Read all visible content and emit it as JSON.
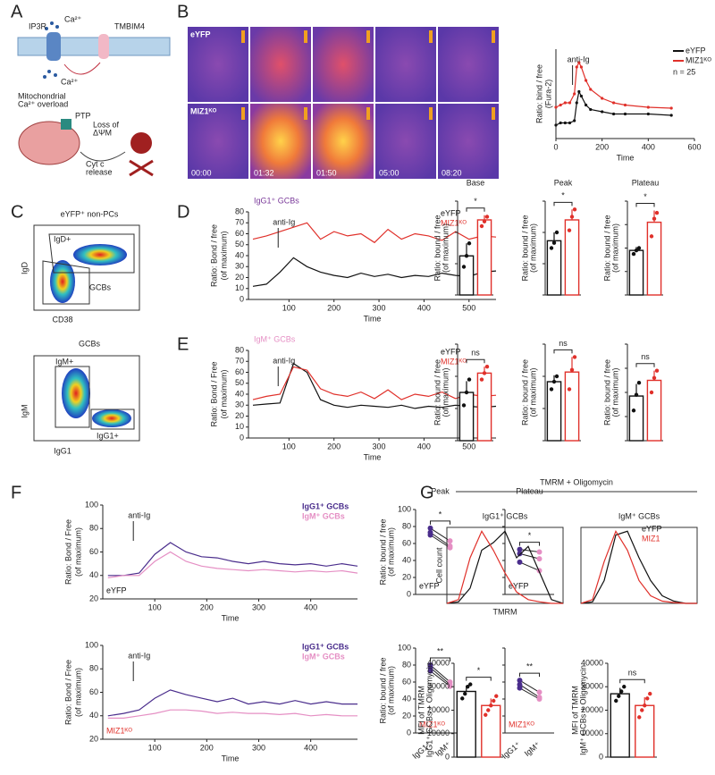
{
  "figure": {
    "panel_labels": [
      "A",
      "B",
      "C",
      "D",
      "E",
      "F",
      "G"
    ],
    "diagram_A": {
      "channel": "IP3R",
      "ion": "Ca²⁺",
      "protein": "TMBIM4",
      "overload_1": "Mitochondrial",
      "overload_2": "Ca²⁺ overload",
      "pore": "PTP",
      "loss_1": "Loss of",
      "loss_2": "ΔΨM",
      "cytc_1": "Cyt c",
      "cytc_2": "release"
    },
    "imaging_B": {
      "rows": [
        "eYFP",
        "MIZ1ᴷᴼ"
      ],
      "times": [
        "00:00",
        "01:32",
        "01:50",
        "05:00",
        "08:20"
      ]
    },
    "flow_C": {
      "title_1": "eYFP⁺ non-PCs",
      "gate_1a": "IgD+",
      "gate_1b": "GCBs",
      "y_1": "IgD",
      "x_1": "CD38",
      "title_2": "GCBs",
      "gate_2a": "IgM+",
      "gate_2b": "IgG1+",
      "y_2": "IgM",
      "x_2": "IgG1"
    },
    "G_title": "TMRM + Oligomycin"
  },
  "chart_data": [
    {
      "type": "line",
      "ylabel": "Ratio: bind / free",
      "ylabel2": "(Fura-2)",
      "xlabel": "Time",
      "xlim": [
        0,
        600
      ],
      "xticks": [
        0,
        200,
        400,
        600
      ],
      "ylim": [
        0.6,
        2.6
      ],
      "legend": "upper right",
      "annotation": "anti-Ig",
      "note": "n = 25",
      "markers": true,
      "x": [
        0,
        20,
        40,
        60,
        80,
        90,
        100,
        110,
        130,
        150,
        200,
        250,
        300,
        400,
        500
      ],
      "series": [
        {
          "name": "eYFP",
          "color": "#111111",
          "values": [
            0.9,
            0.95,
            0.95,
            0.95,
            1.0,
            1.4,
            1.65,
            1.55,
            1.35,
            1.25,
            1.2,
            1.15,
            1.15,
            1.15,
            1.12
          ]
        },
        {
          "name": "MIZ1ᴷᴼ",
          "color": "#e0302a",
          "values": [
            1.3,
            1.35,
            1.4,
            1.4,
            1.6,
            2.2,
            2.3,
            2.2,
            1.9,
            1.7,
            1.5,
            1.4,
            1.35,
            1.3,
            1.28
          ]
        }
      ]
    },
    {
      "type": "line",
      "title": "IgG1⁺ GCBs",
      "title_color": "#7a3a9a",
      "ylabel": "Ratio: Bond / free",
      "ylabel2": "(of maximum)",
      "xlabel": "Time",
      "xlim": [
        10,
        560
      ],
      "xticks": [
        100,
        200,
        300,
        400,
        500
      ],
      "ylim": [
        0,
        80
      ],
      "yticks": [
        0,
        10,
        20,
        30,
        40,
        50,
        60,
        70,
        80
      ],
      "legend": "upper right",
      "annotation": "anti-Ig",
      "x": [
        20,
        50,
        80,
        110,
        140,
        170,
        200,
        230,
        260,
        290,
        320,
        350,
        380,
        410,
        440,
        470,
        500,
        530,
        560
      ],
      "series": [
        {
          "name": "eYFP",
          "color": "#111111",
          "values": [
            12,
            14,
            25,
            38,
            30,
            25,
            22,
            20,
            24,
            21,
            23,
            20,
            22,
            21,
            24,
            22,
            21,
            25,
            26
          ]
        },
        {
          "name": "MIZ1ᴷᴼ",
          "color": "#e0302a",
          "values": [
            55,
            58,
            62,
            66,
            70,
            55,
            62,
            58,
            60,
            52,
            64,
            55,
            60,
            58,
            54,
            62,
            55,
            58,
            57
          ]
        }
      ]
    },
    {
      "type": "bar",
      "title": "Base",
      "ylabel": "Ratio: bound / free",
      "ylabel2": "(of maximum)",
      "ylim": [
        0,
        60
      ],
      "yticks": [
        0,
        20,
        40,
        60
      ],
      "tick_labels": false,
      "colors": [
        "#111111",
        "#e0302a"
      ],
      "values": [
        25,
        48
      ],
      "errors": [
        8,
        3
      ],
      "points": [
        [
          18,
          25,
          33
        ],
        [
          44,
          47,
          50
        ]
      ],
      "significance": "*"
    },
    {
      "type": "bar",
      "title": "Peak",
      "ylabel": "Ratio: bound / free",
      "ylabel2": "(of maximum)",
      "ylim": [
        0,
        90
      ],
      "yticks": [
        0,
        30,
        60,
        90
      ],
      "tick_labels": false,
      "colors": [
        "#111111",
        "#e0302a"
      ],
      "values": [
        52,
        72
      ],
      "errors": [
        8,
        10
      ],
      "points": [
        [
          45,
          50,
          60
        ],
        [
          62,
          75,
          82
        ]
      ],
      "significance": "*"
    },
    {
      "type": "bar",
      "title": "Plateau",
      "ylabel": "Ratio: bound / free",
      "ylabel2": "(of maximum)",
      "ylim": [
        0,
        80
      ],
      "yticks": [
        0,
        20,
        40,
        60,
        80
      ],
      "tick_labels": false,
      "colors": [
        "#111111",
        "#e0302a"
      ],
      "values": [
        38,
        62
      ],
      "errors": [
        3,
        10
      ],
      "points": [
        [
          35,
          38,
          40
        ],
        [
          50,
          65,
          70
        ]
      ],
      "significance": "*"
    },
    {
      "type": "line",
      "title": "IgM⁺ GCBs",
      "title_color": "#e58fc4",
      "ylabel": "Ratio: Bond / Free",
      "ylabel2": "(of maximum)",
      "xlabel": "Time",
      "xlim": [
        10,
        560
      ],
      "xticks": [
        100,
        200,
        300,
        400,
        500
      ],
      "ylim": [
        0,
        80
      ],
      "yticks": [
        0,
        10,
        20,
        30,
        40,
        50,
        60,
        70,
        80
      ],
      "legend": "upper right",
      "annotation": "anti-Ig",
      "x": [
        20,
        50,
        80,
        110,
        140,
        170,
        200,
        230,
        260,
        290,
        320,
        350,
        380,
        410,
        440,
        470,
        500,
        530,
        560
      ],
      "series": [
        {
          "name": "eYFP",
          "color": "#111111",
          "values": [
            30,
            31,
            32,
            68,
            60,
            35,
            30,
            28,
            30,
            29,
            28,
            30,
            27,
            29,
            28,
            30,
            29,
            28,
            29
          ]
        },
        {
          "name": "MIZ1ᴷᴼ",
          "color": "#e0302a",
          "values": [
            35,
            38,
            40,
            65,
            62,
            45,
            40,
            38,
            42,
            36,
            44,
            35,
            40,
            38,
            42,
            36,
            40,
            38,
            39
          ]
        }
      ]
    },
    {
      "type": "bar",
      "ylabel": "Ratio: bound / free",
      "ylabel2": "(of maximum)",
      "ylim": [
        0,
        60
      ],
      "yticks": [
        0,
        20,
        40,
        60
      ],
      "tick_labels": false,
      "colors": [
        "#111111",
        "#e0302a"
      ],
      "values": [
        30,
        42
      ],
      "errors": [
        7,
        4
      ],
      "points": [
        [
          22,
          30,
          38
        ],
        [
          38,
          42,
          46
        ]
      ],
      "significance": "ns"
    },
    {
      "type": "bar",
      "ylabel": "Ratio: bound / free",
      "ylabel2": "(of maximum)",
      "ylim": [
        0,
        90
      ],
      "yticks": [
        0,
        30,
        60,
        90
      ],
      "tick_labels": false,
      "colors": [
        "#111111",
        "#e0302a"
      ],
      "values": [
        55,
        64
      ],
      "errors": [
        6,
        14
      ],
      "points": [
        [
          48,
          55,
          60
        ],
        [
          48,
          66,
          78
        ]
      ],
      "significance": "ns"
    },
    {
      "type": "bar",
      "ylabel": "Ratio: bound / free",
      "ylabel2": "(of maximum)",
      "ylim": [
        0,
        80
      ],
      "yticks": [
        0,
        20,
        40,
        60,
        80
      ],
      "tick_labels": false,
      "colors": [
        "#111111",
        "#e0302a"
      ],
      "values": [
        37,
        50
      ],
      "errors": [
        10,
        8
      ],
      "points": [
        [
          25,
          38,
          48
        ],
        [
          40,
          52,
          58
        ]
      ],
      "significance": "ns"
    },
    {
      "type": "line",
      "ylabel": "Ratio: Bond / Free",
      "ylabel2": "(of maximum)",
      "xlabel": "Time",
      "xlim": [
        0,
        490
      ],
      "xticks": [
        100,
        200,
        300,
        400
      ],
      "ylim": [
        20,
        100
      ],
      "yticks": [
        20,
        40,
        60,
        80,
        100
      ],
      "legend": "upper right",
      "annotation": "anti-Ig",
      "label": "eYFP",
      "label_color": "#111111",
      "x": [
        10,
        40,
        70,
        100,
        130,
        160,
        190,
        220,
        250,
        280,
        310,
        340,
        370,
        400,
        430,
        460,
        490
      ],
      "series": [
        {
          "name": "IgG1⁺ GCBs",
          "color": "#4a2d8c",
          "values": [
            40,
            40,
            42,
            58,
            68,
            60,
            56,
            55,
            52,
            50,
            52,
            50,
            49,
            50,
            48,
            50,
            48
          ]
        },
        {
          "name": "IgM⁺ GCBs",
          "color": "#e58fc4",
          "values": [
            38,
            40,
            40,
            52,
            60,
            52,
            48,
            46,
            45,
            44,
            45,
            44,
            43,
            44,
            43,
            44,
            42
          ]
        }
      ]
    },
    {
      "type": "paired",
      "title": "Peak",
      "ylabel": "Ratio: bound / free",
      "ylabel2": "(of maximum)",
      "ylim": [
        0,
        100
      ],
      "yticks": [
        0,
        20,
        40,
        60,
        80,
        100
      ],
      "colors": [
        "#4a2d8c",
        "#e58fc4"
      ],
      "pairs": [
        [
          78,
          63
        ],
        [
          73,
          57
        ],
        [
          70,
          55
        ]
      ],
      "significance": "*",
      "label": "eYFP",
      "label_color": "#111111"
    },
    {
      "type": "paired",
      "title": "Plateau",
      "ylim": [
        0,
        100
      ],
      "yticks": [
        0,
        20,
        40,
        60,
        80,
        100
      ],
      "tick_labels": false,
      "colors": [
        "#4a2d8c",
        "#e58fc4"
      ],
      "pairs": [
        [
          53,
          50
        ],
        [
          48,
          42
        ],
        [
          38,
          28
        ]
      ],
      "significance": "*",
      "label": "eYFP",
      "label_color": "#111111"
    },
    {
      "type": "line",
      "ylabel": "Ratio: Bond / Free",
      "ylabel2": "(of maximum)",
      "xlabel": "Time",
      "xlim": [
        0,
        490
      ],
      "xticks": [
        100,
        200,
        300,
        400
      ],
      "ylim": [
        20,
        100
      ],
      "yticks": [
        20,
        40,
        60,
        80,
        100
      ],
      "legend": "upper right",
      "annotation": "anti-Ig",
      "label": "MIZ1ᴷᴼ",
      "label_color": "#e0302a",
      "x": [
        10,
        40,
        70,
        100,
        130,
        160,
        190,
        220,
        250,
        280,
        310,
        340,
        370,
        400,
        430,
        460,
        490
      ],
      "series": [
        {
          "name": "IgG1⁺ GCBs",
          "color": "#4a2d8c",
          "values": [
            40,
            42,
            45,
            55,
            62,
            58,
            55,
            52,
            55,
            50,
            52,
            50,
            53,
            50,
            52,
            50,
            50
          ]
        },
        {
          "name": "IgM⁺ GCBs",
          "color": "#e58fc4",
          "values": [
            38,
            38,
            40,
            42,
            45,
            45,
            44,
            42,
            43,
            42,
            42,
            41,
            42,
            40,
            41,
            40,
            40
          ]
        }
      ]
    },
    {
      "type": "paired",
      "ylabel": "Ratio: bound / free",
      "ylabel2": "(of maximum)",
      "ylim": [
        0,
        100
      ],
      "yticks": [
        0,
        20,
        40,
        60,
        80,
        100
      ],
      "categories": [
        "IgG1⁺",
        "IgM⁺"
      ],
      "colors": [
        "#4a2d8c",
        "#e58fc4"
      ],
      "pairs": [
        [
          80,
          60
        ],
        [
          77,
          57
        ],
        [
          73,
          55
        ]
      ],
      "significance": "**",
      "label": "MIZ1ᴷᴼ",
      "label_color": "#e0302a"
    },
    {
      "type": "paired",
      "ylim": [
        0,
        100
      ],
      "yticks": [
        0,
        20,
        40,
        60,
        80,
        100
      ],
      "tick_labels": false,
      "categories": [
        "IgG1⁺",
        "IgM⁺"
      ],
      "colors": [
        "#4a2d8c",
        "#e58fc4"
      ],
      "pairs": [
        [
          62,
          48
        ],
        [
          57,
          42
        ],
        [
          53,
          40
        ]
      ],
      "significance": "**",
      "label": "MIZ1ᴷᴼ",
      "label_color": "#e0302a"
    },
    {
      "type": "line",
      "title": "IgG1⁺ GCBs",
      "ylabel": "Cell count",
      "xlabel": "TMRM",
      "xlim": [
        0,
        100
      ],
      "ylim": [
        0,
        100
      ],
      "boxed": true,
      "x": [
        0,
        10,
        20,
        30,
        40,
        50,
        60,
        70,
        80,
        90,
        100
      ],
      "series": [
        {
          "name": "eYFP",
          "color": "#111111",
          "values": [
            0,
            2,
            20,
            70,
            80,
            95,
            60,
            75,
            40,
            5,
            0
          ]
        },
        {
          "name": "MIZ1",
          "color": "#e0302a",
          "values": [
            0,
            5,
            60,
            95,
            70,
            40,
            15,
            5,
            2,
            0,
            0
          ]
        }
      ]
    },
    {
      "type": "line",
      "title": "IgM⁺ GCBs",
      "xlim": [
        0,
        100
      ],
      "ylim": [
        0,
        100
      ],
      "boxed": true,
      "legend": "upper right",
      "x": [
        0,
        10,
        20,
        30,
        40,
        50,
        60,
        70,
        80,
        90,
        100
      ],
      "series": [
        {
          "name": "eYFP",
          "color": "#111111",
          "values": [
            0,
            2,
            30,
            90,
            95,
            60,
            30,
            10,
            3,
            0,
            0
          ]
        },
        {
          "name": "MIZ1",
          "color": "#e0302a",
          "values": [
            0,
            5,
            55,
            95,
            70,
            30,
            10,
            3,
            1,
            0,
            0
          ]
        }
      ]
    },
    {
      "type": "bar",
      "ylabel": "MFI of TMRM",
      "ylabel2": "IgG1⁺ GCBs + Oligomycin",
      "ylim": [
        0,
        40000
      ],
      "yticks": [
        0,
        10000,
        20000,
        30000,
        40000
      ],
      "colors": [
        "#111111",
        "#e0302a"
      ],
      "values": [
        28000,
        22000
      ],
      "errors": [
        2500,
        3000
      ],
      "points": [
        [
          25000,
          27000,
          30000,
          31000
        ],
        [
          18000,
          20000,
          22000,
          24000,
          26000
        ]
      ],
      "significance": "*"
    },
    {
      "type": "bar",
      "ylabel": "MFI of TMRM",
      "ylabel2": "IgM⁺ GCBs + Oligomycin",
      "ylim": [
        0,
        40000
      ],
      "yticks": [
        0,
        10000,
        20000,
        30000,
        40000
      ],
      "colors": [
        "#111111",
        "#e0302a"
      ],
      "values": [
        27000,
        22000
      ],
      "errors": [
        2500,
        3500
      ],
      "points": [
        [
          24000,
          26000,
          28000,
          30000
        ],
        [
          17000,
          20000,
          22000,
          25000,
          27000
        ]
      ],
      "significance": "ns"
    }
  ]
}
